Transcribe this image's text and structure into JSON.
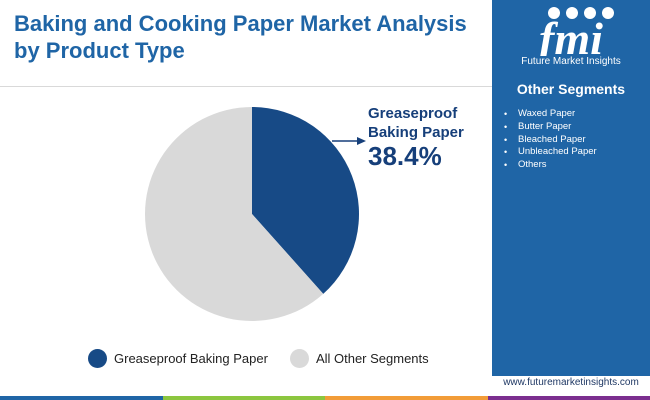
{
  "title": "Baking and Cooking Paper Market Analysis by Product Type",
  "brand": {
    "logo_text": "Future Market Insights",
    "website": "www.futuremarketinsights.com",
    "primary_color": "#1f65a6"
  },
  "side_panel": {
    "title": "Other Segments",
    "items": [
      "Waxed Paper",
      "Butter Paper",
      "Bleached Paper",
      "Unbleached Paper",
      "Others"
    ]
  },
  "callout": {
    "label_line1": "Greaseproof",
    "label_line2": "Baking Paper",
    "value": "38.4%"
  },
  "chart_data": {
    "type": "pie",
    "title": "Baking and Cooking Paper Market Analysis by Product Type",
    "slices": [
      {
        "name": "Greaseproof Baking Paper",
        "value": 38.4,
        "color": "#174a86"
      },
      {
        "name": "All Other Segments",
        "value": 61.6,
        "color": "#d9d9d9"
      }
    ],
    "start_angle": "12 o'clock",
    "direction": "clockwise",
    "legend_position": "bottom"
  },
  "bottom_bar_colors": [
    "#1f65a6",
    "#8cc63f",
    "#f29c38",
    "#7b2e8f"
  ]
}
